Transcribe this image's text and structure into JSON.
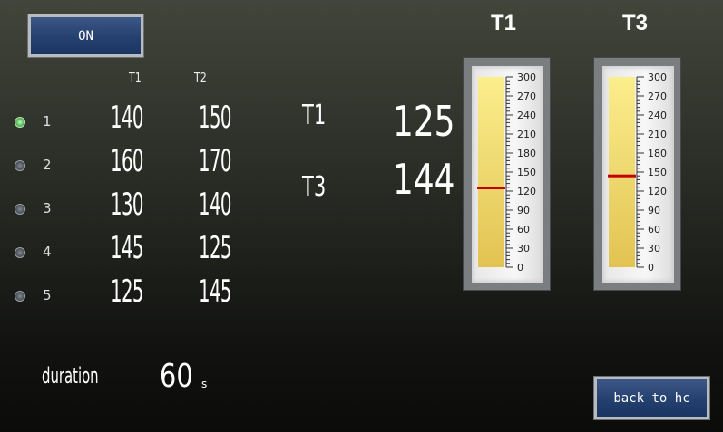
{
  "top_button": {
    "label": "ON"
  },
  "presets": {
    "headers": {
      "t1": "T1",
      "t2": "T2"
    },
    "rows": [
      {
        "num": "1",
        "t1": "140",
        "t2": "150",
        "selected": true
      },
      {
        "num": "2",
        "t1": "160",
        "t2": "170",
        "selected": false
      },
      {
        "num": "3",
        "t1": "130",
        "t2": "140",
        "selected": false
      },
      {
        "num": "4",
        "t1": "145",
        "t2": "125",
        "selected": false
      },
      {
        "num": "5",
        "t1": "125",
        "t2": "145",
        "selected": false
      }
    ]
  },
  "readouts": {
    "t1": {
      "label": "T1",
      "value": "125"
    },
    "t3": {
      "label": "T3",
      "value": "144"
    }
  },
  "gauges": [
    {
      "title": "T1",
      "value": 125,
      "min": 0,
      "max": 300,
      "ticks": [
        "300",
        "270",
        "240",
        "210",
        "180",
        "150",
        "120",
        "90",
        "60",
        "30",
        "0"
      ]
    },
    {
      "title": "T3",
      "value": 144,
      "min": 0,
      "max": 300,
      "ticks": [
        "300",
        "270",
        "240",
        "210",
        "180",
        "150",
        "120",
        "90",
        "60",
        "30",
        "0"
      ]
    }
  ],
  "duration": {
    "label": "duration",
    "value": "60",
    "unit": "s"
  },
  "back_button": {
    "label": "back to hc"
  },
  "colors": {
    "button_blue": "#24406f",
    "gauge_fill": "#f0d772",
    "marker_red": "#c40000"
  }
}
